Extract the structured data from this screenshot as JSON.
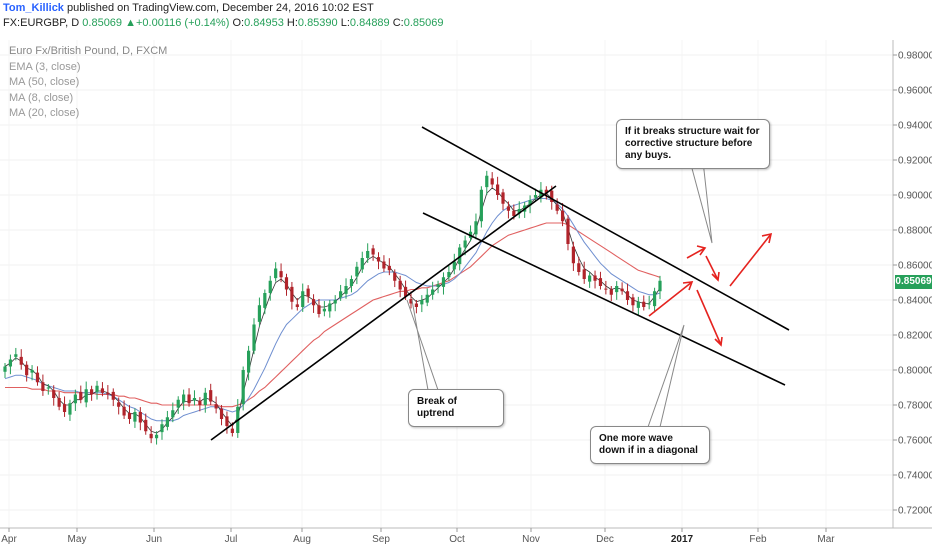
{
  "header": {
    "author": "Tom_Killick",
    "published_text": "published on TradingView.com, December 24, 2016 10:02 EST"
  },
  "ohlc": {
    "symbol": "FX:EURGBP, D",
    "last": "0.85069",
    "arrow": "▲",
    "change": "+0.00116 (+0.14%)",
    "o_label": "O:",
    "o": "0.84953",
    "h_label": "H:",
    "h": "0.85390",
    "l_label": "L:",
    "l": "0.84889",
    "c_label": "C:",
    "c": "0.85069"
  },
  "legend": {
    "title": "Euro Fx/British Pound, D, FXCM",
    "indicators": [
      "EMA (3, close)",
      "MA (50, close)",
      "MA (8, close)",
      "MA (20, close)"
    ]
  },
  "price_tag": "0.85069",
  "callouts": {
    "structure": "If it breaks structure wait for corrective structure before any buys.",
    "uptrend": "Break of uptrend",
    "wave": "One more wave down if in a diagonal"
  },
  "chart_data": {
    "type": "candlestick",
    "y_ticks": [
      "0.98000",
      "0.96000",
      "0.94000",
      "0.92000",
      "0.90000",
      "0.88000",
      "0.86000",
      "0.84000",
      "0.82000",
      "0.80000",
      "0.78000",
      "0.76000",
      "0.74000",
      "0.72000"
    ],
    "x_ticks": [
      {
        "label": "Apr",
        "bold": false
      },
      {
        "label": "May",
        "bold": false
      },
      {
        "label": "Jun",
        "bold": false
      },
      {
        "label": "Jul",
        "bold": false
      },
      {
        "label": "Aug",
        "bold": false
      },
      {
        "label": "Sep",
        "bold": false
      },
      {
        "label": "Oct",
        "bold": false
      },
      {
        "label": "Nov",
        "bold": false
      },
      {
        "label": "Dec",
        "bold": false
      },
      {
        "label": "2017",
        "bold": true
      },
      {
        "label": "Feb",
        "bold": false
      },
      {
        "label": "Mar",
        "bold": false
      }
    ],
    "ylim": [
      0.71,
      0.99
    ],
    "colors": {
      "up": "#26a05a",
      "down": "#b0232a",
      "ma_slow": "#e06060",
      "ma_fast": "#6f8fd0",
      "ema": "#333333",
      "arrows": "#e5231f"
    },
    "closes": [
      0.802,
      0.806,
      0.809,
      0.803,
      0.797,
      0.8,
      0.793,
      0.788,
      0.79,
      0.784,
      0.779,
      0.776,
      0.781,
      0.786,
      0.783,
      0.789,
      0.786,
      0.791,
      0.787,
      0.786,
      0.783,
      0.779,
      0.774,
      0.772,
      0.776,
      0.77,
      0.765,
      0.761,
      0.763,
      0.769,
      0.773,
      0.777,
      0.783,
      0.786,
      0.781,
      0.784,
      0.78,
      0.787,
      0.782,
      0.778,
      0.772,
      0.768,
      0.764,
      0.779,
      0.8,
      0.811,
      0.826,
      0.837,
      0.844,
      0.851,
      0.858,
      0.853,
      0.846,
      0.839,
      0.836,
      0.845,
      0.842,
      0.837,
      0.832,
      0.835,
      0.838,
      0.84,
      0.845,
      0.848,
      0.852,
      0.859,
      0.864,
      0.868,
      0.866,
      0.862,
      0.858,
      0.857,
      0.851,
      0.846,
      0.842,
      0.838,
      0.836,
      0.84,
      0.843,
      0.846,
      0.849,
      0.853,
      0.856,
      0.862,
      0.87,
      0.874,
      0.879,
      0.885,
      0.903,
      0.911,
      0.906,
      0.9,
      0.895,
      0.891,
      0.888,
      0.892,
      0.894,
      0.897,
      0.9,
      0.903,
      0.901,
      0.896,
      0.891,
      0.885,
      0.872,
      0.861,
      0.856,
      0.852,
      0.854,
      0.851,
      0.848,
      0.846,
      0.843,
      0.848,
      0.845,
      0.84,
      0.837,
      0.839,
      0.836,
      0.838,
      0.845,
      0.851
    ],
    "ema3": [
      0.802,
      0.804,
      0.807,
      0.805,
      0.801,
      0.8,
      0.797,
      0.792,
      0.791,
      0.788,
      0.783,
      0.78,
      0.78,
      0.783,
      0.783,
      0.786,
      0.786,
      0.788,
      0.788,
      0.787,
      0.785,
      0.782,
      0.778,
      0.775,
      0.775,
      0.773,
      0.769,
      0.765,
      0.764,
      0.766,
      0.77,
      0.773,
      0.778,
      0.782,
      0.782,
      0.783,
      0.782,
      0.784,
      0.783,
      0.781,
      0.776,
      0.772,
      0.768,
      0.773,
      0.787,
      0.799,
      0.812,
      0.825,
      0.834,
      0.843,
      0.85,
      0.852,
      0.849,
      0.844,
      0.84,
      0.843,
      0.842,
      0.84,
      0.836,
      0.836,
      0.837,
      0.839,
      0.842,
      0.845,
      0.848,
      0.853,
      0.859,
      0.863,
      0.865,
      0.863,
      0.861,
      0.859,
      0.855,
      0.851,
      0.846,
      0.842,
      0.839,
      0.84,
      0.841,
      0.844,
      0.847,
      0.85,
      0.853,
      0.858,
      0.864,
      0.869,
      0.874,
      0.88,
      0.891,
      0.901,
      0.904,
      0.902,
      0.898,
      0.895,
      0.891,
      0.891,
      0.893,
      0.895,
      0.898,
      0.9,
      0.901,
      0.898,
      0.894,
      0.89,
      0.881,
      0.871,
      0.864,
      0.858,
      0.856,
      0.853,
      0.851,
      0.848,
      0.846,
      0.847,
      0.846,
      0.843,
      0.84,
      0.839,
      0.838,
      0.838,
      0.842,
      0.847
    ],
    "ma_fast": [
      0.795,
      0.796,
      0.797,
      0.797,
      0.796,
      0.795,
      0.794,
      0.792,
      0.791,
      0.79,
      0.789,
      0.788,
      0.788,
      0.788,
      0.787,
      0.787,
      0.787,
      0.787,
      0.787,
      0.786,
      0.785,
      0.783,
      0.781,
      0.779,
      0.778,
      0.776,
      0.774,
      0.772,
      0.771,
      0.771,
      0.771,
      0.771,
      0.772,
      0.774,
      0.775,
      0.776,
      0.777,
      0.778,
      0.779,
      0.779,
      0.778,
      0.777,
      0.776,
      0.777,
      0.78,
      0.784,
      0.789,
      0.795,
      0.801,
      0.808,
      0.815,
      0.821,
      0.826,
      0.829,
      0.832,
      0.835,
      0.837,
      0.839,
      0.84,
      0.84,
      0.84,
      0.84,
      0.841,
      0.842,
      0.843,
      0.845,
      0.848,
      0.851,
      0.853,
      0.855,
      0.856,
      0.856,
      0.856,
      0.855,
      0.854,
      0.852,
      0.85,
      0.849,
      0.848,
      0.848,
      0.848,
      0.849,
      0.85,
      0.852,
      0.855,
      0.859,
      0.863,
      0.867,
      0.873,
      0.879,
      0.884,
      0.888,
      0.891,
      0.893,
      0.894,
      0.895,
      0.896,
      0.897,
      0.898,
      0.898,
      0.898,
      0.897,
      0.895,
      0.892,
      0.888,
      0.883,
      0.878,
      0.873,
      0.869,
      0.865,
      0.861,
      0.858,
      0.855,
      0.853,
      0.851,
      0.849,
      0.847,
      0.845,
      0.844,
      0.843,
      0.843,
      0.844
    ],
    "ma_slow": [
      0.79,
      0.79,
      0.79,
      0.79,
      0.79,
      0.789,
      0.789,
      0.789,
      0.788,
      0.788,
      0.788,
      0.787,
      0.787,
      0.787,
      0.787,
      0.787,
      0.787,
      0.786,
      0.786,
      0.786,
      0.786,
      0.785,
      0.785,
      0.784,
      0.784,
      0.783,
      0.782,
      0.781,
      0.781,
      0.78,
      0.78,
      0.78,
      0.78,
      0.78,
      0.78,
      0.78,
      0.78,
      0.78,
      0.78,
      0.78,
      0.779,
      0.779,
      0.779,
      0.78,
      0.781,
      0.783,
      0.785,
      0.788,
      0.79,
      0.793,
      0.796,
      0.799,
      0.802,
      0.805,
      0.808,
      0.811,
      0.814,
      0.817,
      0.819,
      0.822,
      0.824,
      0.826,
      0.828,
      0.83,
      0.832,
      0.834,
      0.836,
      0.838,
      0.84,
      0.841,
      0.842,
      0.843,
      0.844,
      0.845,
      0.845,
      0.846,
      0.846,
      0.847,
      0.847,
      0.848,
      0.849,
      0.85,
      0.851,
      0.853,
      0.855,
      0.857,
      0.859,
      0.862,
      0.865,
      0.868,
      0.871,
      0.873,
      0.875,
      0.877,
      0.878,
      0.879,
      0.88,
      0.881,
      0.882,
      0.883,
      0.884,
      0.884,
      0.884,
      0.884,
      0.883,
      0.881,
      0.879,
      0.877,
      0.875,
      0.873,
      0.871,
      0.869,
      0.867,
      0.865,
      0.863,
      0.861,
      0.859,
      0.857,
      0.856,
      0.855,
      0.854,
      0.853
    ]
  }
}
